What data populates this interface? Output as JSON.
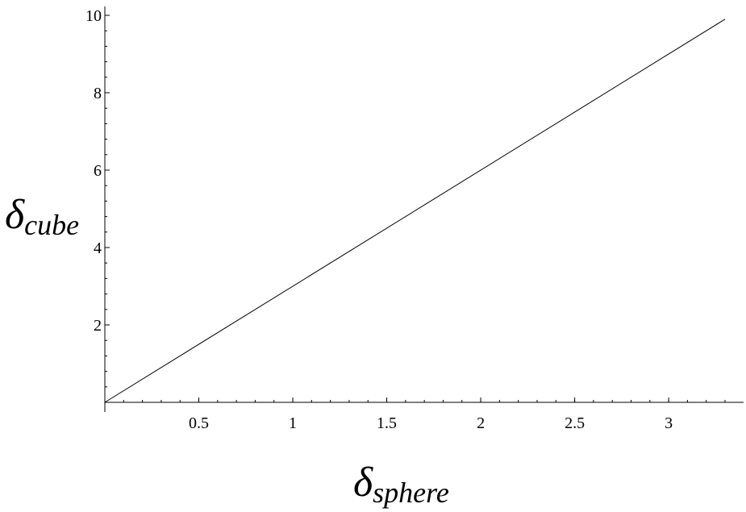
{
  "chart_data": {
    "type": "line",
    "xlabel": "δsphere",
    "xlabel_parts": {
      "base": "δ",
      "sub": "sphere"
    },
    "ylabel": "δcube",
    "ylabel_parts": {
      "base": "δ",
      "sub": "cube"
    },
    "xlim": [
      0,
      3.33
    ],
    "ylim": [
      0,
      10
    ],
    "x_ticks": [
      0.5,
      1,
      1.5,
      2,
      2.5,
      3
    ],
    "x_tick_labels": [
      "0.5",
      "1",
      "1.5",
      "2",
      "2.5",
      "3"
    ],
    "y_ticks": [
      2,
      4,
      6,
      8,
      10
    ],
    "y_tick_labels": [
      "2",
      "4",
      "6",
      "8",
      "10"
    ],
    "grid": false,
    "series": [
      {
        "x": [
          0,
          3.3
        ],
        "y": [
          0,
          9.9
        ],
        "color": "#000000"
      }
    ]
  }
}
